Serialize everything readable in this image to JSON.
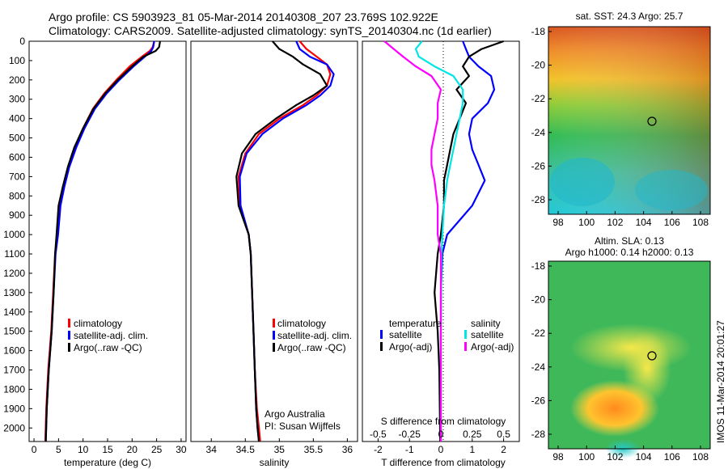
{
  "header": {
    "line1": "Argo profile: CS 5903923_81 05-Mar-2014 20140308_207 23.769S 102.922E",
    "line2": "Climatology: CARS2009. Satellite-adjusted climatology: synTS_20140304.nc (1d earlier)"
  },
  "colors": {
    "climatology": "#ff0000",
    "satellite": "#0000ff",
    "argo": "#000000",
    "cyan": "#00e5e5",
    "magenta": "#ff00ff"
  },
  "depth_axis": {
    "ticks": [
      0,
      100,
      200,
      300,
      400,
      500,
      600,
      700,
      800,
      900,
      1000,
      1100,
      1200,
      1300,
      1400,
      1500,
      1600,
      1700,
      1800,
      1900,
      2000
    ],
    "ylim": [
      0,
      2070
    ]
  },
  "legend_main": [
    "climatology",
    "satellite-adj. clim.",
    "Argo(..raw -QC)"
  ],
  "legend_diff": {
    "temp_title": "temperature",
    "sal_title": "salinity",
    "temp_items": [
      "satellite",
      "Argo(-adj)"
    ],
    "sal_items": [
      "satellite",
      "Argo(-adj)"
    ]
  },
  "credits": {
    "org": "Argo Australia",
    "pi": "PI: Susan Wijffels"
  },
  "map1": {
    "title": "sat. SST: 24.3 Argo: 25.7",
    "xticks": [
      "98",
      "100",
      "102",
      "104",
      "106",
      "108"
    ],
    "yticks": [
      "-18",
      "-20",
      "-22",
      "-24",
      "-26",
      "-28"
    ]
  },
  "map2": {
    "title1": "Altim. SLA: 0.13",
    "title2": "Argo h1000: 0.14 h2000: 0.13",
    "xticks": [
      "98",
      "100",
      "102",
      "104",
      "106",
      "108"
    ],
    "yticks": [
      "-18",
      "-20",
      "-22",
      "-24",
      "-26",
      "-28"
    ]
  },
  "stamp": "IMOS 11-Mar-2014 20:01:27",
  "chart_data": [
    {
      "type": "line",
      "xlabel": "temperature (deg C)",
      "ylabel": "",
      "xlim": [
        -1,
        31
      ],
      "ylim": [
        2070,
        0
      ],
      "xticks": [
        0,
        5,
        10,
        15,
        20,
        25,
        30
      ],
      "series": [
        {
          "name": "climatology",
          "color": "#ff0000",
          "x": [
            24.5,
            24.2,
            23.6,
            22.0,
            19.5,
            16.8,
            14.3,
            12.0,
            10.0,
            8.3,
            7.0,
            6.0,
            5.2,
            4.7,
            4.3,
            3.9,
            3.5,
            2.9,
            2.5,
            2.3
          ],
          "y": [
            0,
            30,
            50,
            80,
            130,
            200,
            270,
            350,
            450,
            550,
            650,
            750,
            850,
            1000,
            1100,
            1300,
            1500,
            1700,
            1900,
            2070
          ]
        },
        {
          "name": "satellite-adj. clim.",
          "color": "#0000ff",
          "x": [
            24.5,
            24.3,
            23.9,
            22.6,
            20.3,
            17.4,
            14.8,
            12.4,
            10.3,
            8.6,
            7.2,
            6.2,
            5.4,
            4.9,
            4.4,
            4.0,
            3.6,
            3.0,
            2.6,
            2.4
          ],
          "y": [
            0,
            30,
            50,
            80,
            130,
            200,
            270,
            350,
            450,
            550,
            650,
            750,
            850,
            1000,
            1100,
            1300,
            1500,
            1700,
            1900,
            2070
          ]
        },
        {
          "name": "Argo(..raw -QC)",
          "color": "#000000",
          "x": [
            25.7,
            25.5,
            24.8,
            22.3,
            20.0,
            17.1,
            14.5,
            12.1,
            10.0,
            8.2,
            6.9,
            5.9,
            5.0,
            4.6,
            4.3,
            4.0,
            3.6,
            3.0,
            2.6,
            2.4
          ],
          "y": [
            0,
            30,
            50,
            80,
            130,
            200,
            270,
            350,
            450,
            550,
            650,
            750,
            850,
            1000,
            1100,
            1300,
            1500,
            1700,
            1900,
            2070
          ]
        }
      ]
    },
    {
      "type": "line",
      "xlabel": "salinity",
      "ylabel": "",
      "xlim": [
        33.7,
        36.15
      ],
      "ylim": [
        2070,
        0
      ],
      "xticks": [
        34,
        34.5,
        35,
        35.5,
        36
      ],
      "series": [
        {
          "name": "climatology",
          "color": "#ff0000",
          "x": [
            35.3,
            35.4,
            35.55,
            35.7,
            35.75,
            35.7,
            35.55,
            35.35,
            35.0,
            34.7,
            34.5,
            34.4,
            34.42,
            34.55,
            34.58,
            34.6,
            34.62,
            34.64,
            34.67,
            34.7,
            34.72
          ],
          "y": [
            0,
            40,
            80,
            120,
            170,
            230,
            280,
            330,
            400,
            480,
            580,
            700,
            850,
            1000,
            1100,
            1300,
            1500,
            1700,
            1900,
            2000,
            2070
          ]
        },
        {
          "name": "satellite-adj. clim.",
          "color": "#0000ff",
          "x": [
            35.25,
            35.3,
            35.45,
            35.7,
            35.8,
            35.75,
            35.6,
            35.4,
            35.05,
            34.75,
            34.52,
            34.42,
            34.43,
            34.55,
            34.58,
            34.6,
            34.62,
            34.64,
            34.66,
            34.68,
            34.7
          ],
          "y": [
            0,
            40,
            80,
            120,
            170,
            230,
            280,
            330,
            400,
            480,
            580,
            700,
            850,
            1000,
            1100,
            1300,
            1500,
            1700,
            1900,
            2000,
            2070
          ]
        },
        {
          "name": "Argo(..raw -QC)",
          "color": "#000000",
          "x": [
            34.9,
            35.0,
            35.2,
            35.35,
            35.6,
            35.7,
            35.5,
            35.25,
            34.95,
            34.65,
            34.45,
            34.37,
            34.4,
            34.55,
            34.58,
            34.6,
            34.62,
            34.64,
            34.66,
            34.68,
            34.7
          ],
          "y": [
            0,
            40,
            80,
            120,
            170,
            230,
            280,
            330,
            400,
            480,
            580,
            700,
            850,
            1000,
            1100,
            1300,
            1500,
            1700,
            1900,
            2000,
            2070
          ]
        }
      ]
    },
    {
      "type": "line",
      "xlabel": "T difference from climatology",
      "xlabel2": "S difference from climatology",
      "xlim": [
        -2.5,
        2.5
      ],
      "ylim": [
        2070,
        0
      ],
      "xticks": [
        -2,
        -1,
        0,
        1,
        2
      ],
      "xticks2": [
        "-0.5",
        "-0.25",
        "0",
        "0.25",
        "0.5"
      ],
      "series": [
        {
          "name": "temperature satellite",
          "color": "#0000ff",
          "x": [
            0.7,
            0.8,
            0.9,
            1.2,
            1.6,
            1.7,
            1.5,
            1.0,
            0.9,
            1.0,
            1.2,
            1.4,
            1.0,
            0.2,
            0.05,
            0,
            0,
            0,
            0
          ],
          "y": [
            0,
            40,
            80,
            130,
            180,
            250,
            320,
            400,
            480,
            560,
            640,
            720,
            850,
            1000,
            1100,
            1300,
            1500,
            1700,
            2070
          ]
        },
        {
          "name": "temperature Argo(-adj)",
          "color": "#000000",
          "x": [
            2.0,
            1.3,
            0.9,
            0.7,
            0.9,
            0.5,
            0.8,
            0.6,
            0.4,
            0.3,
            0.2,
            0.1,
            0.1,
            0,
            -0.1,
            -0.2,
            -0.1,
            -0.05,
            -0.02
          ],
          "y": [
            0,
            40,
            80,
            130,
            180,
            250,
            320,
            400,
            480,
            560,
            640,
            720,
            850,
            1000,
            1100,
            1300,
            1500,
            1700,
            2070
          ]
        },
        {
          "name": "salinity satellite",
          "color": "#00e5e5",
          "x": [
            -0.6,
            -0.8,
            -0.7,
            -0.2,
            0.4,
            0.7,
            0.7,
            0.6,
            0.5,
            0.4,
            0.3,
            0.2,
            0.1,
            0.05,
            0.02,
            0.01,
            0,
            0,
            0
          ],
          "y": [
            0,
            40,
            80,
            130,
            180,
            250,
            320,
            400,
            480,
            560,
            640,
            720,
            850,
            1000,
            1100,
            1300,
            1500,
            1700,
            2070
          ]
        },
        {
          "name": "salinity Argo(-adj)",
          "color": "#ff00ff",
          "x": [
            -1.8,
            -1.5,
            -1.2,
            -0.8,
            -0.3,
            0,
            -0.1,
            -0.1,
            -0.2,
            -0.3,
            -0.3,
            -0.2,
            -0.1,
            -0.1,
            0,
            0,
            0,
            0,
            0
          ],
          "y": [
            0,
            40,
            80,
            130,
            180,
            250,
            320,
            400,
            480,
            560,
            640,
            720,
            850,
            1000,
            1100,
            1300,
            1500,
            1700,
            2070
          ]
        }
      ]
    }
  ]
}
